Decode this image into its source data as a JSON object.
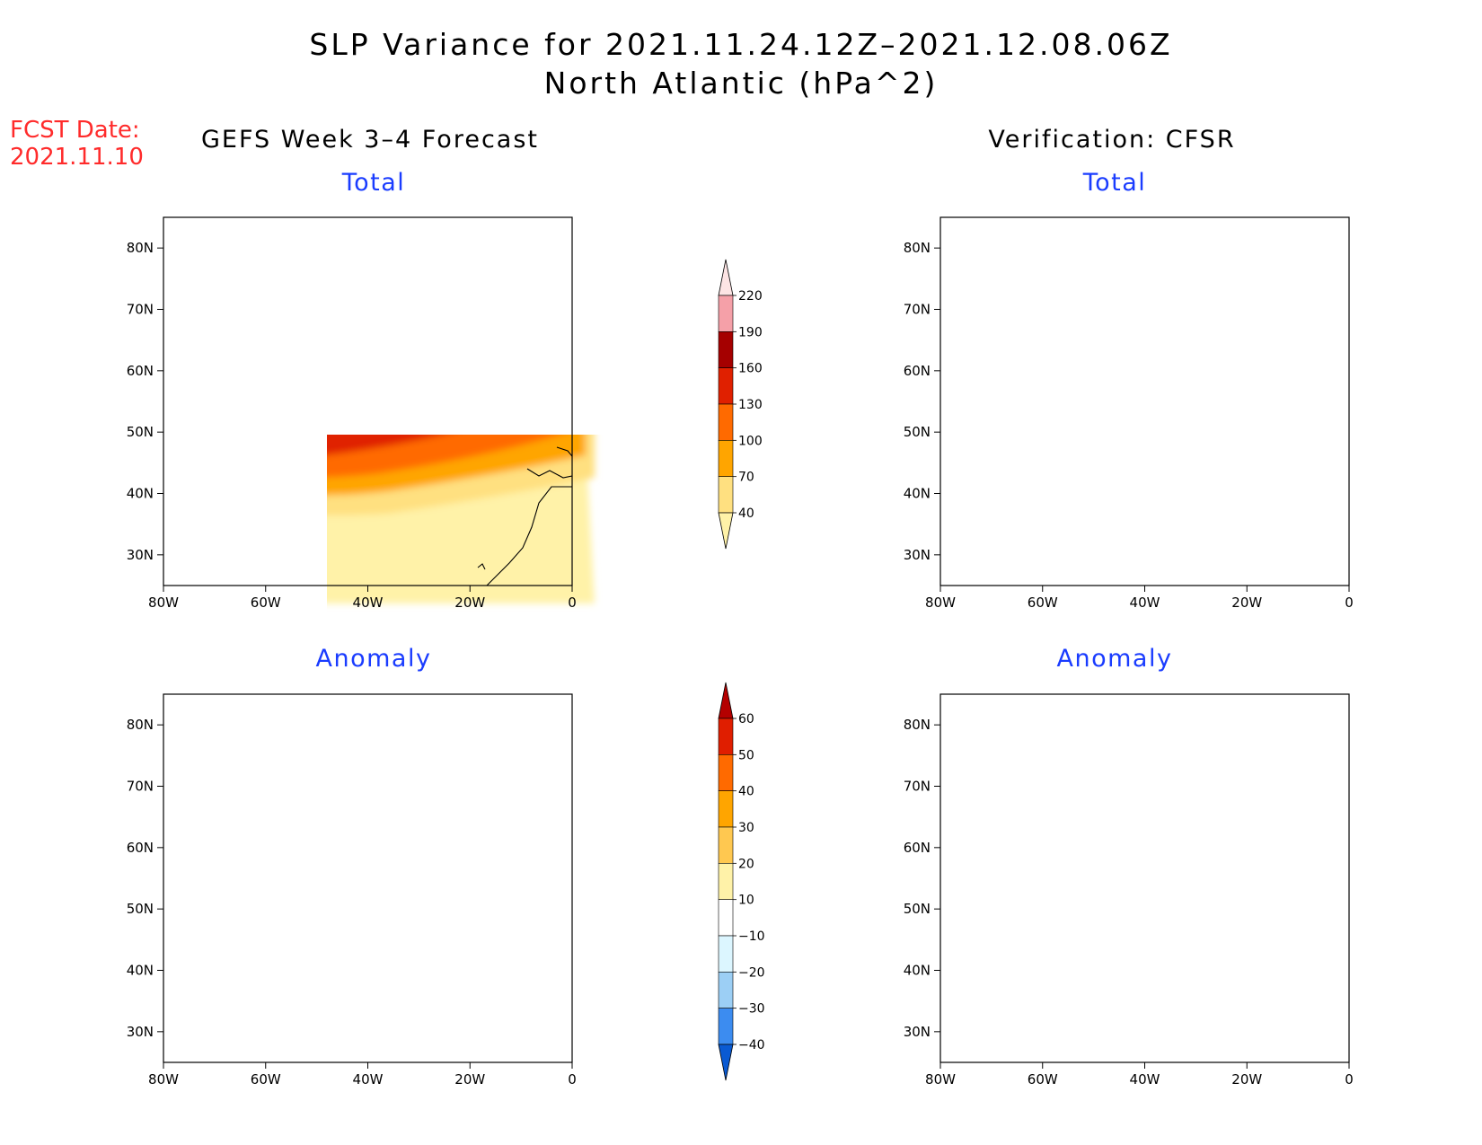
{
  "header": {
    "title_line1": "SLP Variance for 2021.11.24.12Z–2021.12.08.06Z",
    "title_line2": "North Atlantic (hPa^2)",
    "fcst_label": "FCST Date:",
    "fcst_date": "2021.11.10"
  },
  "columns": {
    "left_title": "GEFS Week 3–4 Forecast",
    "right_title": "Verification: CFSR"
  },
  "panels": {
    "forecast_total": {
      "subtitle": "Total"
    },
    "verification_total": {
      "subtitle": "Total"
    },
    "forecast_anomaly": {
      "subtitle": "Anomaly"
    },
    "verification_anomaly": {
      "subtitle": "Anomaly"
    }
  },
  "axes": {
    "lat_labels": [
      "30N",
      "40N",
      "50N",
      "60N",
      "70N",
      "80N"
    ],
    "lat_values": [
      30,
      40,
      50,
      60,
      70,
      80
    ],
    "lon_labels": [
      "80W",
      "60W",
      "40W",
      "20W",
      "0"
    ],
    "lon_values": [
      -80,
      -60,
      -40,
      -20,
      0
    ],
    "lon_range": [
      -80,
      0
    ],
    "lat_range": [
      25,
      85
    ]
  },
  "colorbars": {
    "total": {
      "labels": [
        "40",
        "70",
        "100",
        "130",
        "160",
        "190",
        "220"
      ],
      "colors": [
        "#fff2a8",
        "#ffe080",
        "#ffa500",
        "#ff6a00",
        "#e02000",
        "#a50000",
        "#f5a0a8",
        "#fde4e4"
      ]
    },
    "anomaly": {
      "labels": [
        "60",
        "50",
        "40",
        "30",
        "20",
        "10",
        "−10",
        "−20",
        "−30",
        "−40"
      ],
      "colors": [
        "#b40000",
        "#e01e00",
        "#ff6a00",
        "#ffa500",
        "#ffc850",
        "#fff2a8",
        "#ffffff",
        "#dcf6ff",
        "#9ccff5",
        "#3c8cf0",
        "#0a5ad2"
      ]
    }
  }
}
